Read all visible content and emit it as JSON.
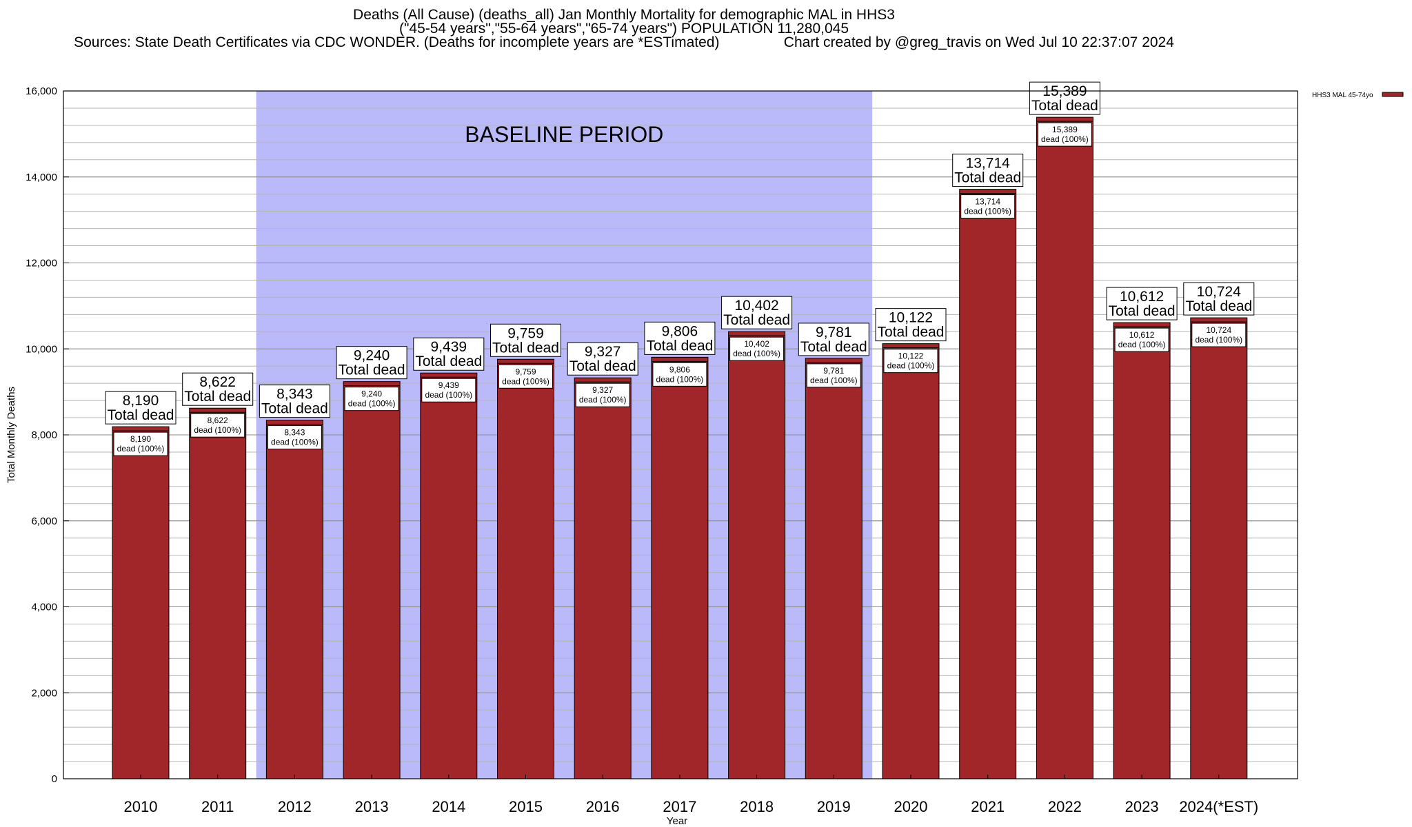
{
  "chart_data": {
    "type": "bar",
    "title_lines": [
      "Deaths (All Cause) (deaths_all) Jan Monthly Mortality for demographic MAL in HHS3",
      "(\"45-54 years\",\"55-64 years\",\"65-74 years\") POPULATION 11,280,045",
      "Sources: State Death Certificates via CDC WONDER. (Deaths for incomplete years are *ESTimated)                Chart created by @greg_travis on Wed Jul 10 22:37:07 2024"
    ],
    "xlabel": "Year",
    "ylabel": "Total Monthly Deaths",
    "ylim": [
      0,
      16000
    ],
    "yticks": [
      {
        "value": 0,
        "label": "0"
      },
      {
        "value": 2000,
        "label": "2,000"
      },
      {
        "value": 4000,
        "label": "4,000"
      },
      {
        "value": 6000,
        "label": "6,000"
      },
      {
        "value": 8000,
        "label": "8,000"
      },
      {
        "value": 10000,
        "label": "10,000"
      },
      {
        "value": 12000,
        "label": "12,000"
      },
      {
        "value": 14000,
        "label": "14,000"
      },
      {
        "value": 16000,
        "label": "16,000"
      }
    ],
    "minor_grid_step": 400,
    "grid": true,
    "categories": [
      "2010",
      "2011",
      "2012",
      "2013",
      "2014",
      "2015",
      "2016",
      "2017",
      "2018",
      "2019",
      "2020",
      "2021",
      "2022",
      "2023",
      "2024(*EST)"
    ],
    "series": [
      {
        "name": "HHS3 MAL 45-74yo",
        "color": "#a0262a",
        "values": [
          8190,
          8622,
          8343,
          9240,
          9439,
          9759,
          9327,
          9806,
          10402,
          9781,
          10122,
          13714,
          15389,
          10612,
          10724
        ],
        "value_labels": [
          "8,190",
          "8,622",
          "8,343",
          "9,240",
          "9,439",
          "9,759",
          "9,327",
          "9,806",
          "10,402",
          "9,781",
          "10,122",
          "13,714",
          "15,389",
          "10,612",
          "10,724"
        ]
      }
    ],
    "total_dead_text": "Total dead",
    "inner_suffix": "dead (100%)",
    "baseline": {
      "label": "BASELINE PERIOD",
      "start_category": "2012",
      "end_category": "2019",
      "color": "#babafa"
    },
    "legend_position": "top-right"
  }
}
